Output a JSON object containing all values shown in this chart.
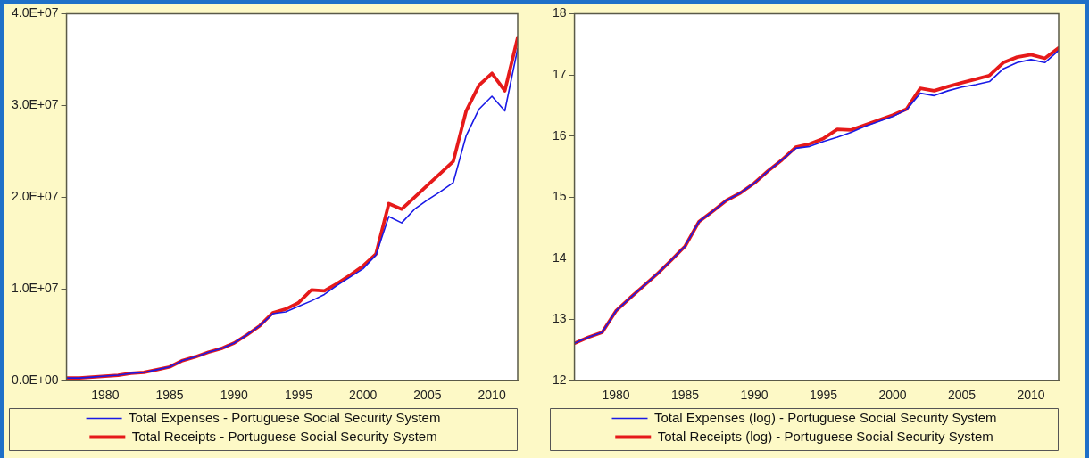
{
  "chart_data": [
    {
      "type": "line",
      "x": [
        1977,
        1978,
        1979,
        1980,
        1981,
        1982,
        1983,
        1984,
        1985,
        1986,
        1987,
        1988,
        1989,
        1990,
        1991,
        1992,
        1993,
        1994,
        1995,
        1996,
        1997,
        1998,
        1999,
        2000,
        2001,
        2002,
        2003,
        2004,
        2005,
        2006,
        2007,
        2008,
        2009,
        2010,
        2011,
        2012
      ],
      "series": [
        {
          "name": "Total Expenses - Portuguese Social Security System",
          "color": "#1a1ae6",
          "values": [
            300000,
            300000,
            400000,
            500000,
            600000,
            800000,
            900000,
            1200000,
            1500000,
            2200000,
            2600000,
            3100000,
            3500000,
            4100000,
            5000000,
            6000000,
            7300000,
            7500000,
            8100000,
            8700000,
            9400000,
            10400000,
            11300000,
            12200000,
            13700000,
            17900000,
            17200000,
            18700000,
            19700000,
            20600000,
            21600000,
            26700000,
            29600000,
            31000000,
            29400000,
            36200000
          ]
        },
        {
          "name": "Total Receipts - Portuguese Social Security System",
          "color": "#e61a1a",
          "values": [
            300000,
            300000,
            400000,
            500000,
            600000,
            800000,
            900000,
            1200000,
            1500000,
            2200000,
            2600000,
            3100000,
            3500000,
            4100000,
            5000000,
            6000000,
            7400000,
            7800000,
            8500000,
            9900000,
            9800000,
            10600000,
            11500000,
            12500000,
            13800000,
            19300000,
            18700000,
            20000000,
            21300000,
            22600000,
            23900000,
            29400000,
            32200000,
            33500000,
            31600000,
            37400000
          ]
        }
      ],
      "xlim": [
        1977,
        2012
      ],
      "xticks": [
        1980,
        1985,
        1990,
        1995,
        2000,
        2005,
        2010
      ],
      "ylim": [
        0,
        40000000
      ],
      "yticks": [
        {
          "value": 0,
          "label": "0.0E+00"
        },
        {
          "value": 10000000,
          "label": "1.0E+07"
        },
        {
          "value": 20000000,
          "label": "2.0E+07"
        },
        {
          "value": 30000000,
          "label": "3.0E+07"
        },
        {
          "value": 40000000,
          "label": "4.0E+07"
        }
      ],
      "grid": false,
      "legend": "bottom",
      "marker": "none",
      "line_style": "solid"
    },
    {
      "type": "line",
      "x": [
        1977,
        1978,
        1979,
        1980,
        1981,
        1982,
        1983,
        1984,
        1985,
        1986,
        1987,
        1988,
        1989,
        1990,
        1991,
        1992,
        1993,
        1994,
        1995,
        1996,
        1997,
        1998,
        1999,
        2000,
        2001,
        2002,
        2003,
        2004,
        2005,
        2006,
        2007,
        2008,
        2009,
        2010,
        2011,
        2012
      ],
      "series": [
        {
          "name": "Total Expenses (log) - Portuguese Social Security System",
          "color": "#1a1ae6",
          "values": [
            12.61,
            12.71,
            12.79,
            13.14,
            13.35,
            13.55,
            13.75,
            13.97,
            14.2,
            14.6,
            14.77,
            14.95,
            15.07,
            15.23,
            15.43,
            15.61,
            15.8,
            15.83,
            15.91,
            15.98,
            16.06,
            16.16,
            16.24,
            16.32,
            16.43,
            16.7,
            16.66,
            16.74,
            16.8,
            16.84,
            16.89,
            17.1,
            17.2,
            17.25,
            17.2,
            17.4
          ]
        },
        {
          "name": "Total Receipts (log) - Portuguese Social Security System",
          "color": "#e61a1a",
          "values": [
            12.61,
            12.71,
            12.79,
            13.14,
            13.35,
            13.55,
            13.75,
            13.97,
            14.2,
            14.6,
            14.77,
            14.95,
            15.07,
            15.23,
            15.43,
            15.61,
            15.82,
            15.87,
            15.96,
            16.11,
            16.1,
            16.18,
            16.26,
            16.34,
            16.44,
            16.78,
            16.74,
            16.81,
            16.87,
            16.93,
            16.99,
            17.2,
            17.29,
            17.33,
            17.27,
            17.44
          ]
        }
      ],
      "xlim": [
        1977,
        2012
      ],
      "xticks": [
        1980,
        1985,
        1990,
        1995,
        2000,
        2005,
        2010
      ],
      "ylim": [
        12,
        18
      ],
      "yticks": [
        12,
        13,
        14,
        15,
        16,
        17,
        18
      ],
      "grid": false,
      "legend": "bottom",
      "marker": "none",
      "line_style": "solid"
    }
  ]
}
